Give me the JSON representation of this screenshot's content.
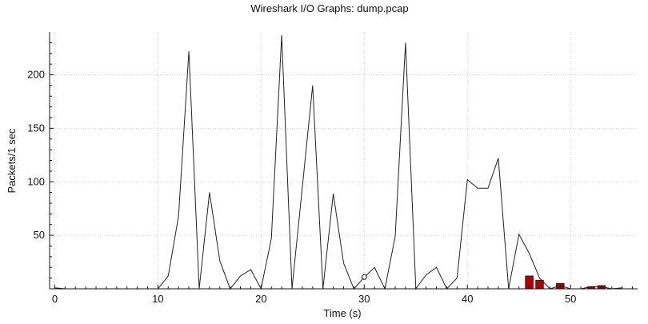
{
  "chart_data": {
    "type": "line",
    "title": "Wireshark I/O Graphs: dump.pcap",
    "xlabel": "Time (s)",
    "ylabel": "Packets/1 sec",
    "xlim": [
      -0.5,
      56.5
    ],
    "ylim": [
      0,
      240
    ],
    "x_ticks": [
      0,
      10,
      20,
      30,
      40,
      50
    ],
    "y_ticks": [
      50,
      100,
      150,
      200
    ],
    "grid": true,
    "colors": {
      "line": "#222222",
      "bar": "#b00000",
      "bar_edge": "#550000",
      "grid": "#c8c8c8"
    },
    "series": [
      {
        "type": "line",
        "x": [
          0,
          1,
          2,
          3,
          4,
          5,
          6,
          7,
          8,
          9,
          10,
          11,
          12,
          13,
          14,
          15,
          16,
          17,
          18,
          19,
          20,
          21,
          22,
          23,
          24,
          25,
          26,
          27,
          28,
          29,
          30,
          31,
          32,
          33,
          34,
          35,
          36,
          37,
          38,
          39,
          40,
          41,
          42,
          43,
          44,
          45,
          46,
          47,
          48,
          49,
          50,
          51,
          52,
          53,
          54,
          55
        ],
        "values": [
          1,
          0,
          0,
          0,
          0,
          0,
          0,
          0,
          0,
          0,
          0,
          12,
          68,
          222,
          0,
          90,
          26,
          0,
          12,
          18,
          0,
          47,
          237,
          0,
          95,
          190,
          0,
          89,
          24,
          0,
          11,
          20,
          0,
          49,
          230,
          0,
          13,
          20,
          0,
          10,
          102,
          94,
          94,
          122,
          0,
          51,
          33,
          10,
          0,
          3,
          0,
          0,
          2,
          2,
          0,
          1
        ]
      },
      {
        "type": "bar",
        "x": [
          46,
          47,
          49,
          52,
          53
        ],
        "values": [
          12,
          8,
          5,
          2,
          3
        ]
      },
      {
        "type": "marker",
        "x": [
          30
        ],
        "values": [
          11
        ]
      }
    ]
  }
}
